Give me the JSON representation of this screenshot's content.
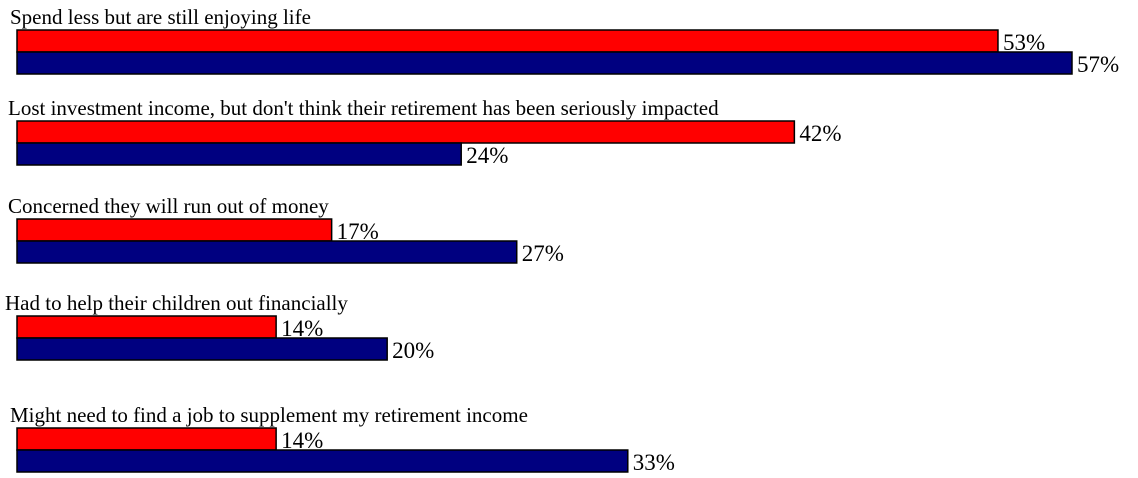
{
  "chart_data": {
    "type": "bar",
    "orientation": "horizontal",
    "categories": [
      "Spend less but are still enjoying life",
      "Lost investment income, but don't think their retirement has been seriously impacted",
      "Concerned they will run out of money",
      "Had to help their children out financially",
      "Might need to find a job to supplement my retirement income"
    ],
    "series": [
      {
        "color": "#ff0000",
        "values": [
          53,
          42,
          17,
          14,
          14
        ],
        "labels": [
          "53%",
          "42%",
          "17%",
          "14%",
          "14%"
        ]
      },
      {
        "color": "#000080",
        "values": [
          57,
          24,
          27,
          20,
          33
        ],
        "labels": [
          "57%",
          "24%",
          "27%",
          "20%",
          "33%"
        ]
      }
    ],
    "xlim": [
      0,
      57
    ],
    "grid": false,
    "legend": "none"
  }
}
